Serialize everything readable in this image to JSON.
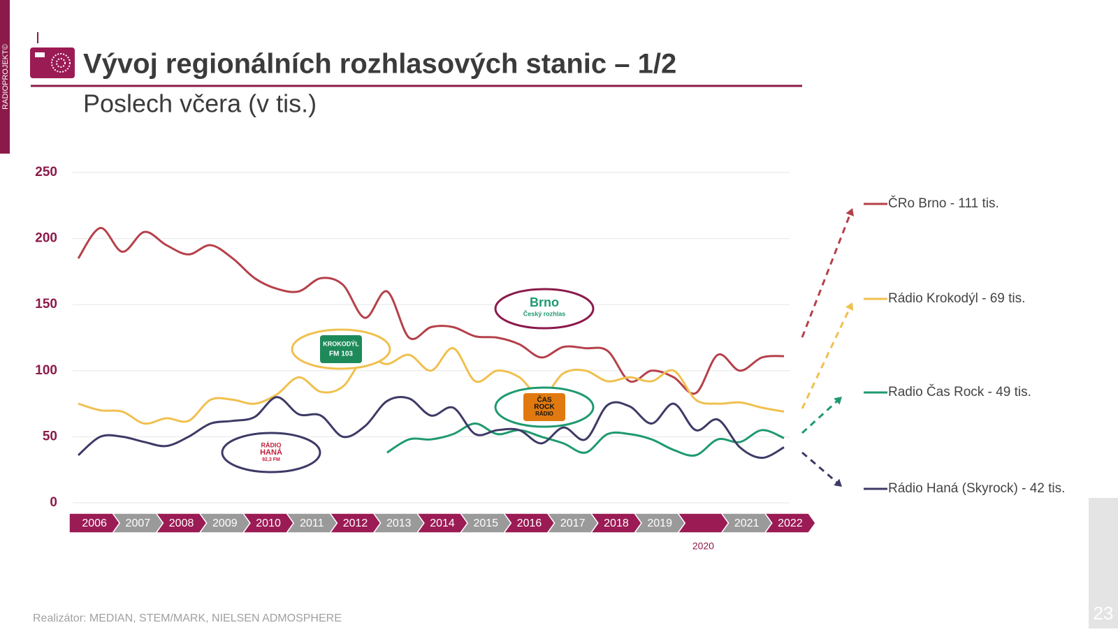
{
  "sidebar": "RADIOPROJEKT©",
  "title": "Vývoj regionálních rozhlasových stanic – 1/2",
  "subtitle": "Poslech včera (v tis.)",
  "footer": "Realizátor: MEDIAN, STEM/MARK, NIELSEN ADMOSPHERE",
  "page_number": "23",
  "logos": {
    "brno": [
      "Brno",
      "Český rozhlas"
    ],
    "krokodyl": [
      "KROKODÝL",
      "FM 103"
    ],
    "casrock": [
      "ČAS",
      "ROCK",
      "RÁDIO"
    ],
    "hana": [
      "RÁDIO",
      "HANÁ",
      "92,3 FM"
    ]
  },
  "chart_data": {
    "type": "line",
    "x": [
      2006,
      2006.5,
      2007,
      2007.5,
      2008,
      2008.5,
      2009,
      2009.5,
      2010,
      2010.5,
      2011,
      2011.5,
      2012,
      2012.5,
      2013,
      2013.5,
      2014,
      2014.5,
      2015,
      2015.5,
      2016,
      2016.5,
      2017,
      2017.5,
      2018,
      2018.5,
      2019,
      2019.5,
      2020,
      2020.5,
      2021,
      2021.5,
      2022
    ],
    "xlim": [
      2006,
      2022
    ],
    "categories": [
      "2006",
      "2007",
      "2008",
      "2009",
      "2010",
      "2011",
      "2012",
      "2013",
      "2014",
      "2015",
      "2016",
      "2017",
      "2018",
      "2019",
      "2020",
      "2021",
      "2022"
    ],
    "category_colors": [
      "#9b1b55",
      "#9a9a9a"
    ],
    "ylim": [
      0,
      250
    ],
    "yticks": [
      0,
      50,
      100,
      150,
      200,
      250
    ],
    "grid": true,
    "series": [
      {
        "name": "ČRo Brno - 111 tis.",
        "color": "#b5404a",
        "values": [
          185,
          208,
          190,
          205,
          195,
          188,
          195,
          185,
          170,
          162,
          160,
          170,
          165,
          140,
          160,
          125,
          133,
          133,
          126,
          125,
          120,
          110,
          118,
          117,
          115,
          92,
          100,
          95,
          83,
          112,
          100,
          110,
          111
        ]
      },
      {
        "name": "Rádio Krokodýl - 69 tis.",
        "color": "#f0c04e",
        "values": [
          75,
          70,
          69,
          60,
          64,
          62,
          78,
          78,
          75,
          82,
          95,
          84,
          88,
          110,
          105,
          112,
          100,
          117,
          92,
          100,
          95,
          80,
          98,
          100,
          92,
          95,
          92,
          100,
          78,
          75,
          76,
          72,
          69
        ]
      },
      {
        "name": "Radio Čas Rock - 49 tis.",
        "color": "#1e9a6e",
        "values": [
          null,
          null,
          null,
          null,
          null,
          null,
          null,
          null,
          null,
          null,
          null,
          null,
          null,
          null,
          38,
          48,
          48,
          52,
          60,
          52,
          55,
          50,
          45,
          38,
          52,
          52,
          48,
          40,
          36,
          48,
          46,
          55,
          49
        ]
      },
      {
        "name": "Rádio Haná (Skyrock) - 42 tis.",
        "color": "#3d3a66",
        "values": [
          36,
          50,
          50,
          46,
          43,
          50,
          60,
          62,
          65,
          80,
          67,
          66,
          50,
          58,
          77,
          79,
          66,
          72,
          52,
          55,
          55,
          45,
          57,
          48,
          74,
          73,
          60,
          75,
          55,
          63,
          42,
          34,
          42
        ]
      }
    ]
  }
}
